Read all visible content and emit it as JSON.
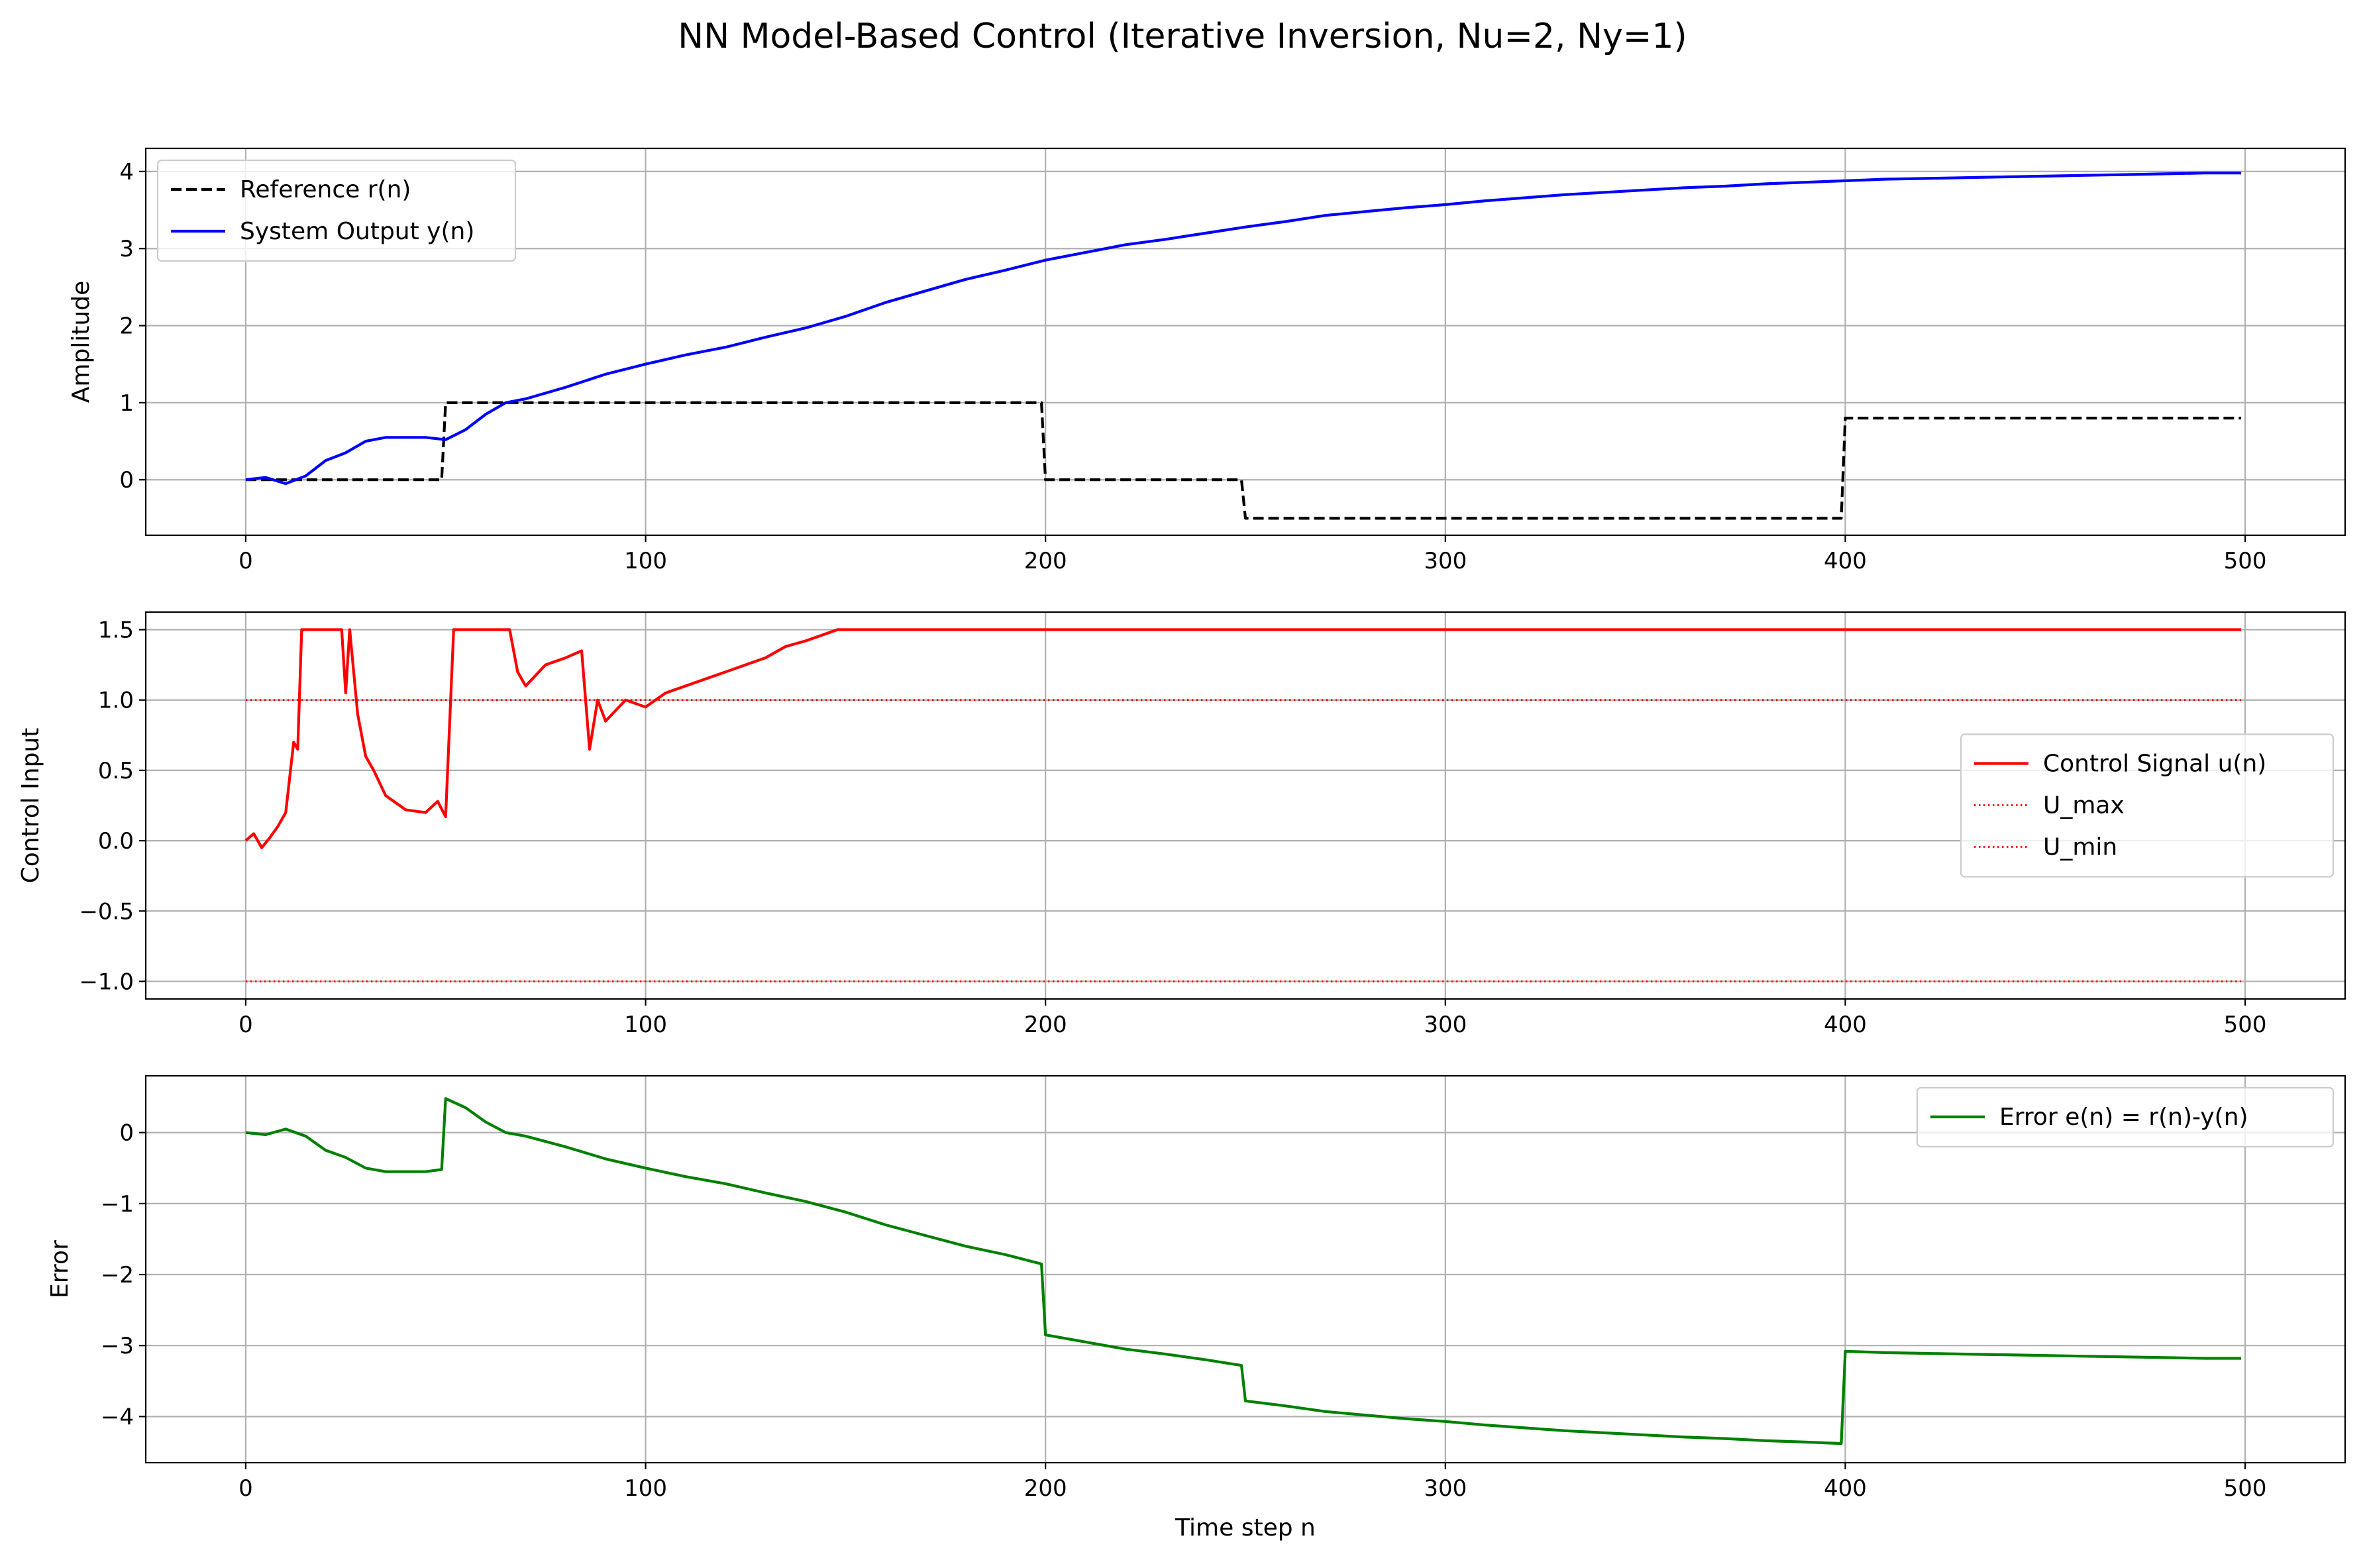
{
  "figure": {
    "title": "NN Model-Based Control (Iterative Inversion, Nu=2, Ny=1)"
  },
  "colors": {
    "reference": "#000000",
    "output": "#0000ff",
    "control": "#ff0000",
    "limits": "#ff0000",
    "error": "#008000",
    "grid": "#b0b0b0"
  },
  "chart_data": [
    {
      "type": "line",
      "ylabel": "Amplitude",
      "xlabel": "",
      "xlim": [
        -25,
        525
      ],
      "ylim": [
        -0.72,
        4.3
      ],
      "xticks": [
        0,
        100,
        200,
        300,
        400,
        500
      ],
      "xtick_labels": [
        "0",
        "100",
        "200",
        "300",
        "400",
        "500"
      ],
      "yticks": [
        0,
        1,
        2,
        3,
        4
      ],
      "ytick_labels": [
        "0",
        "1",
        "2",
        "3",
        "4"
      ],
      "grid": true,
      "legend": "upper-left",
      "series": [
        {
          "name": "Reference r(n)",
          "style": "dashed",
          "color": "#000000",
          "x": [
            0,
            49,
            50,
            199,
            200,
            249,
            250,
            399,
            400,
            499
          ],
          "y": [
            0,
            0,
            1,
            1,
            0,
            0,
            -0.5,
            -0.5,
            0.8,
            0.8
          ]
        },
        {
          "name": "System Output y(n)",
          "style": "solid",
          "color": "#0000ff",
          "x": [
            0,
            5,
            10,
            15,
            20,
            25,
            30,
            35,
            40,
            45,
            50,
            55,
            60,
            65,
            70,
            80,
            90,
            100,
            110,
            120,
            130,
            140,
            150,
            160,
            170,
            180,
            190,
            200,
            210,
            220,
            230,
            240,
            250,
            260,
            270,
            280,
            290,
            300,
            310,
            320,
            330,
            340,
            350,
            360,
            370,
            380,
            390,
            400,
            410,
            420,
            430,
            440,
            450,
            460,
            470,
            480,
            490,
            499
          ],
          "y": [
            0.0,
            0.03,
            -0.05,
            0.05,
            0.25,
            0.35,
            0.5,
            0.55,
            0.55,
            0.55,
            0.52,
            0.65,
            0.85,
            1.0,
            1.05,
            1.2,
            1.37,
            1.5,
            1.62,
            1.72,
            1.85,
            1.97,
            2.12,
            2.3,
            2.45,
            2.6,
            2.72,
            2.85,
            2.95,
            3.05,
            3.12,
            3.2,
            3.28,
            3.35,
            3.43,
            3.48,
            3.53,
            3.57,
            3.62,
            3.66,
            3.7,
            3.73,
            3.76,
            3.79,
            3.81,
            3.84,
            3.86,
            3.88,
            3.9,
            3.91,
            3.92,
            3.93,
            3.94,
            3.95,
            3.96,
            3.97,
            3.98,
            3.98
          ]
        }
      ]
    },
    {
      "type": "line",
      "ylabel": "Control Input",
      "xlabel": "",
      "xlim": [
        -25,
        525
      ],
      "ylim": [
        -1.125,
        1.625
      ],
      "xticks": [
        0,
        100,
        200,
        300,
        400,
        500
      ],
      "xtick_labels": [
        "0",
        "100",
        "200",
        "300",
        "400",
        "500"
      ],
      "yticks": [
        -1.0,
        -0.5,
        0.0,
        0.5,
        1.0,
        1.5
      ],
      "ytick_labels": [
        "−1.0",
        "−0.5",
        "0.0",
        "0.5",
        "1.0",
        "1.5"
      ],
      "grid": true,
      "legend": "center-right",
      "series": [
        {
          "name": "Control Signal u(n)",
          "style": "solid",
          "color": "#ff0000",
          "x": [
            0,
            2,
            4,
            6,
            8,
            10,
            12,
            13,
            14,
            20,
            24,
            25,
            26,
            28,
            30,
            32,
            35,
            40,
            45,
            48,
            50,
            52,
            55,
            60,
            66,
            68,
            70,
            75,
            80,
            84,
            86,
            88,
            90,
            95,
            100,
            105,
            110,
            115,
            120,
            125,
            130,
            135,
            140,
            145,
            148,
            150,
            200,
            250,
            300,
            350,
            400,
            450,
            499
          ],
          "y": [
            0.0,
            0.05,
            -0.05,
            0.02,
            0.1,
            0.2,
            0.7,
            0.65,
            1.5,
            1.5,
            1.5,
            1.05,
            1.5,
            0.9,
            0.6,
            0.5,
            0.32,
            0.22,
            0.2,
            0.28,
            0.17,
            1.5,
            1.5,
            1.5,
            1.5,
            1.2,
            1.1,
            1.25,
            1.3,
            1.35,
            0.65,
            1.0,
            0.85,
            1.0,
            0.95,
            1.05,
            1.1,
            1.15,
            1.2,
            1.25,
            1.3,
            1.38,
            1.42,
            1.47,
            1.5,
            1.5,
            1.5,
            1.5,
            1.5,
            1.5,
            1.5,
            1.5,
            1.5
          ]
        },
        {
          "name": "U_max",
          "style": "dotted",
          "color": "#ff0000",
          "x": [
            0,
            499
          ],
          "y": [
            1.0,
            1.0
          ]
        },
        {
          "name": "U_min",
          "style": "dotted",
          "color": "#ff0000",
          "x": [
            0,
            499
          ],
          "y": [
            -1.0,
            -1.0
          ]
        }
      ]
    },
    {
      "type": "line",
      "ylabel": "Error",
      "xlabel": "Time step n",
      "xlim": [
        -25,
        525
      ],
      "ylim": [
        -4.65,
        0.8
      ],
      "xticks": [
        0,
        100,
        200,
        300,
        400,
        500
      ],
      "xtick_labels": [
        "0",
        "100",
        "200",
        "300",
        "400",
        "500"
      ],
      "yticks": [
        -4,
        -3,
        -2,
        -1,
        0
      ],
      "ytick_labels": [
        "−4",
        "−3",
        "−2",
        "−1",
        "0"
      ],
      "grid": true,
      "legend": "upper-right",
      "series": [
        {
          "name": "Error e(n) = r(n)-y(n)",
          "style": "solid",
          "color": "#008000",
          "x": [
            0,
            5,
            10,
            15,
            20,
            25,
            30,
            35,
            40,
            45,
            49,
            50,
            55,
            60,
            65,
            70,
            80,
            90,
            100,
            110,
            120,
            130,
            140,
            150,
            160,
            170,
            180,
            190,
            199,
            200,
            210,
            220,
            230,
            240,
            249,
            250,
            260,
            270,
            280,
            290,
            300,
            310,
            320,
            330,
            340,
            350,
            360,
            370,
            380,
            390,
            399,
            400,
            410,
            420,
            430,
            440,
            450,
            460,
            470,
            480,
            490,
            499
          ],
          "y": [
            0.0,
            -0.03,
            0.05,
            -0.05,
            -0.25,
            -0.35,
            -0.5,
            -0.55,
            -0.55,
            -0.55,
            -0.52,
            0.48,
            0.35,
            0.15,
            0.0,
            -0.05,
            -0.2,
            -0.37,
            -0.5,
            -0.62,
            -0.72,
            -0.85,
            -0.97,
            -1.12,
            -1.3,
            -1.45,
            -1.6,
            -1.72,
            -1.85,
            -2.85,
            -2.95,
            -3.05,
            -3.12,
            -3.2,
            -3.28,
            -3.78,
            -3.85,
            -3.93,
            -3.98,
            -4.03,
            -4.07,
            -4.12,
            -4.16,
            -4.2,
            -4.23,
            -4.26,
            -4.29,
            -4.31,
            -4.34,
            -4.36,
            -4.38,
            -3.08,
            -3.1,
            -3.11,
            -3.12,
            -3.13,
            -3.14,
            -3.15,
            -3.16,
            -3.17,
            -3.18,
            -3.18
          ]
        }
      ]
    }
  ]
}
